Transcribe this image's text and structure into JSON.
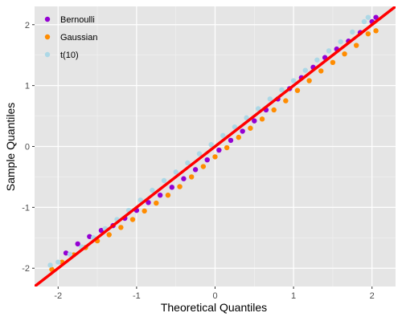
{
  "chart_data": {
    "type": "scatter",
    "title": "",
    "xlabel": "Theoretical Quantiles",
    "ylabel": "Sample Quantiles",
    "xlim": [
      -2.3,
      2.3
    ],
    "ylim": [
      -2.3,
      2.3
    ],
    "x_ticks": [
      -2,
      -1,
      0,
      1,
      2
    ],
    "y_ticks": [
      -2,
      -1,
      0,
      1,
      2
    ],
    "x_tick_labels": [
      "-2",
      "-1",
      "0",
      "1",
      "2"
    ],
    "y_tick_labels": [
      "-2",
      "-1",
      "0",
      "1",
      "2"
    ],
    "grid": true,
    "background": "#e5e5e5",
    "legend_position": "top-left",
    "series": [
      {
        "name": "Bernoulli",
        "color": "#9400d3",
        "points": [
          [
            -1.9,
            -1.75
          ],
          [
            -1.75,
            -1.6
          ],
          [
            -1.6,
            -1.48
          ],
          [
            -1.45,
            -1.38
          ],
          [
            -1.3,
            -1.3
          ],
          [
            -1.15,
            -1.18
          ],
          [
            -1.0,
            -1.05
          ],
          [
            -0.85,
            -0.92
          ],
          [
            -0.7,
            -0.8
          ],
          [
            -0.55,
            -0.67
          ],
          [
            -0.4,
            -0.53
          ],
          [
            -0.25,
            -0.38
          ],
          [
            -0.1,
            -0.22
          ],
          [
            0.05,
            -0.06
          ],
          [
            0.2,
            0.1
          ],
          [
            0.35,
            0.25
          ],
          [
            0.5,
            0.42
          ],
          [
            0.65,
            0.6
          ],
          [
            0.8,
            0.78
          ],
          [
            0.95,
            0.95
          ],
          [
            1.1,
            1.13
          ],
          [
            1.25,
            1.3
          ],
          [
            1.4,
            1.46
          ],
          [
            1.55,
            1.6
          ],
          [
            1.7,
            1.73
          ],
          [
            1.85,
            1.87
          ],
          [
            2.0,
            2.05
          ],
          [
            2.05,
            2.12
          ]
        ]
      },
      {
        "name": "Gaussian",
        "color": "#ff8c00",
        "points": [
          [
            -2.08,
            -2.02
          ],
          [
            -1.95,
            -1.9
          ],
          [
            -1.8,
            -1.78
          ],
          [
            -1.65,
            -1.66
          ],
          [
            -1.5,
            -1.55
          ],
          [
            -1.35,
            -1.45
          ],
          [
            -1.2,
            -1.33
          ],
          [
            -1.05,
            -1.2
          ],
          [
            -0.9,
            -1.06
          ],
          [
            -0.75,
            -0.93
          ],
          [
            -0.6,
            -0.8
          ],
          [
            -0.45,
            -0.66
          ],
          [
            -0.3,
            -0.5
          ],
          [
            -0.15,
            -0.33
          ],
          [
            0.0,
            -0.17
          ],
          [
            0.15,
            -0.02
          ],
          [
            0.3,
            0.15
          ],
          [
            0.45,
            0.3
          ],
          [
            0.6,
            0.45
          ],
          [
            0.75,
            0.6
          ],
          [
            0.9,
            0.75
          ],
          [
            1.05,
            0.92
          ],
          [
            1.2,
            1.08
          ],
          [
            1.35,
            1.24
          ],
          [
            1.5,
            1.38
          ],
          [
            1.65,
            1.52
          ],
          [
            1.8,
            1.66
          ],
          [
            1.95,
            1.85
          ],
          [
            2.05,
            1.9
          ]
        ]
      },
      {
        "name": "t(10)",
        "color": "#add8e6",
        "points": [
          [
            -2.1,
            -1.95
          ],
          [
            -2.0,
            -1.9
          ],
          [
            -1.85,
            -1.77
          ],
          [
            -1.7,
            -1.65
          ],
          [
            -1.55,
            -1.5
          ],
          [
            -1.4,
            -1.35
          ],
          [
            -1.25,
            -1.2
          ],
          [
            -1.1,
            -1.05
          ],
          [
            -0.95,
            -0.88
          ],
          [
            -0.8,
            -0.72
          ],
          [
            -0.65,
            -0.56
          ],
          [
            -0.5,
            -0.42
          ],
          [
            -0.35,
            -0.27
          ],
          [
            -0.2,
            -0.12
          ],
          [
            -0.05,
            0.03
          ],
          [
            0.1,
            0.18
          ],
          [
            0.25,
            0.32
          ],
          [
            0.4,
            0.47
          ],
          [
            0.55,
            0.62
          ],
          [
            0.7,
            0.78
          ],
          [
            0.85,
            0.93
          ],
          [
            1.0,
            1.08
          ],
          [
            1.15,
            1.25
          ],
          [
            1.3,
            1.42
          ],
          [
            1.45,
            1.57
          ],
          [
            1.6,
            1.72
          ],
          [
            1.75,
            1.88
          ],
          [
            1.9,
            2.05
          ],
          [
            1.95,
            2.12
          ]
        ]
      }
    ],
    "reference_line": {
      "color": "#ff0000",
      "slope": 1,
      "intercept": 0
    }
  }
}
